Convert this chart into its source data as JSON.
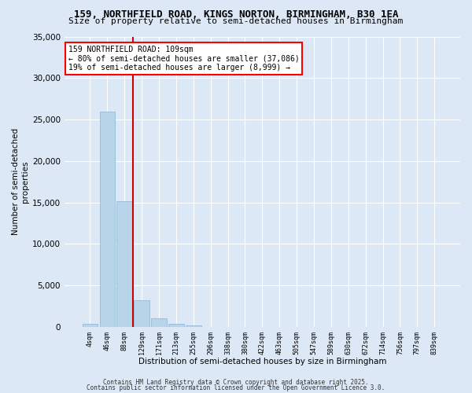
{
  "title": "159, NORTHFIELD ROAD, KINGS NORTON, BIRMINGHAM, B30 1EA",
  "subtitle": "Size of property relative to semi-detached houses in Birmingham",
  "xlabel": "Distribution of semi-detached houses by size in Birmingham",
  "ylabel": "Number of semi-detached\nproperties",
  "footer1": "Contains HM Land Registry data © Crown copyright and database right 2025.",
  "footer2": "Contains public sector information licensed under the Open Government Licence 3.0.",
  "annotation_title": "159 NORTHFIELD ROAD: 109sqm",
  "annotation_line1": "← 80% of semi-detached houses are smaller (37,086)",
  "annotation_line2": "19% of semi-detached houses are larger (8,999) →",
  "bar_categories": [
    "4sqm",
    "46sqm",
    "88sqm",
    "129sqm",
    "171sqm",
    "213sqm",
    "255sqm",
    "296sqm",
    "338sqm",
    "380sqm",
    "422sqm",
    "463sqm",
    "505sqm",
    "547sqm",
    "589sqm",
    "630sqm",
    "672sqm",
    "714sqm",
    "756sqm",
    "797sqm",
    "839sqm"
  ],
  "bar_values": [
    380,
    26000,
    15200,
    3200,
    1000,
    400,
    150,
    30,
    10,
    5,
    3,
    2,
    1,
    1,
    0,
    0,
    0,
    0,
    0,
    0,
    0
  ],
  "bar_color": "#b8d4e8",
  "bar_edgecolor": "#8ab4d0",
  "red_line_x": 2.5,
  "red_line_color": "#cc0000",
  "background_color": "#dce8f5",
  "ylim": [
    0,
    35000
  ],
  "yticks": [
    0,
    5000,
    10000,
    15000,
    20000,
    25000,
    30000,
    35000
  ]
}
